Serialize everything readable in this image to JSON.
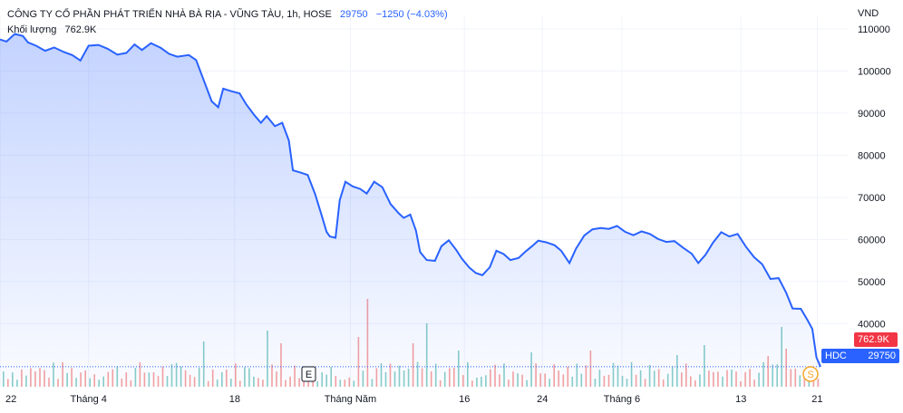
{
  "legend": {
    "company": "CÔNG TY CỔ PHẦN PHÁT TRIỂN NHÀ BÀ RỊA - VŨNG TÀU, 1h, HOSE",
    "last": "29750",
    "change": "−1250 (−4.03%)",
    "volume_label": "Khối lượng",
    "volume_value": "762.9K"
  },
  "currency": "VND",
  "badges": {
    "volume": "762.9K",
    "symbol": "HDC",
    "price": "29750"
  },
  "markers": {
    "earnings": "E",
    "dividend": "S"
  },
  "colors": {
    "line": "#2962ff",
    "up": "#26a69a",
    "down": "#ef5350",
    "badge_down": "#f23645"
  },
  "chart_data": {
    "type": "area",
    "yaxis": {
      "min": 25000,
      "max": 113000,
      "ticks": [
        40000,
        50000,
        60000,
        70000,
        80000,
        90000,
        100000,
        110000
      ],
      "side": "right"
    },
    "xaxis_labels": [
      "22",
      "Tháng 4",
      "18",
      "Tháng Năm",
      "16",
      "24",
      "Tháng 6",
      "13",
      "21"
    ],
    "xaxis_label_positions": [
      0,
      0.108,
      0.286,
      0.427,
      0.566,
      0.661,
      0.758,
      0.903,
      0.996
    ],
    "series": [
      {
        "values": [
          [
            0.0,
            107500
          ],
          [
            0.008,
            107000
          ],
          [
            0.018,
            108800
          ],
          [
            0.028,
            108300
          ],
          [
            0.034,
            106800
          ],
          [
            0.044,
            106000
          ],
          [
            0.055,
            104800
          ],
          [
            0.066,
            105600
          ],
          [
            0.078,
            104500
          ],
          [
            0.088,
            103800
          ],
          [
            0.098,
            102500
          ],
          [
            0.108,
            106000
          ],
          [
            0.12,
            106200
          ],
          [
            0.131,
            105300
          ],
          [
            0.143,
            103900
          ],
          [
            0.154,
            104300
          ],
          [
            0.164,
            106300
          ],
          [
            0.173,
            105000
          ],
          [
            0.184,
            106600
          ],
          [
            0.196,
            105500
          ],
          [
            0.206,
            104100
          ],
          [
            0.216,
            103400
          ],
          [
            0.23,
            103800
          ],
          [
            0.239,
            102600
          ],
          [
            0.248,
            98000
          ],
          [
            0.258,
            92800
          ],
          [
            0.266,
            91400
          ],
          [
            0.272,
            95800
          ],
          [
            0.282,
            95200
          ],
          [
            0.292,
            94700
          ],
          [
            0.3,
            92100
          ],
          [
            0.31,
            89500
          ],
          [
            0.318,
            87700
          ],
          [
            0.325,
            89300
          ],
          [
            0.335,
            86900
          ],
          [
            0.344,
            87700
          ],
          [
            0.352,
            83500
          ],
          [
            0.357,
            76400
          ],
          [
            0.366,
            75900
          ],
          [
            0.375,
            75300
          ],
          [
            0.384,
            70800
          ],
          [
            0.392,
            65700
          ],
          [
            0.398,
            61800
          ],
          [
            0.402,
            60700
          ],
          [
            0.409,
            60400
          ],
          [
            0.414,
            69300
          ],
          [
            0.421,
            73700
          ],
          [
            0.43,
            72600
          ],
          [
            0.439,
            72000
          ],
          [
            0.447,
            70900
          ],
          [
            0.456,
            73700
          ],
          [
            0.466,
            72400
          ],
          [
            0.476,
            68400
          ],
          [
            0.486,
            66200
          ],
          [
            0.492,
            65100
          ],
          [
            0.5,
            65900
          ],
          [
            0.507,
            62100
          ],
          [
            0.512,
            57000
          ],
          [
            0.52,
            55100
          ],
          [
            0.53,
            54900
          ],
          [
            0.538,
            58400
          ],
          [
            0.547,
            59800
          ],
          [
            0.556,
            57500
          ],
          [
            0.563,
            55400
          ],
          [
            0.572,
            53300
          ],
          [
            0.58,
            52000
          ],
          [
            0.588,
            51500
          ],
          [
            0.597,
            53400
          ],
          [
            0.605,
            57300
          ],
          [
            0.614,
            56500
          ],
          [
            0.622,
            55100
          ],
          [
            0.632,
            55600
          ],
          [
            0.641,
            57200
          ],
          [
            0.648,
            58300
          ],
          [
            0.656,
            59700
          ],
          [
            0.666,
            59300
          ],
          [
            0.676,
            58600
          ],
          [
            0.684,
            57300
          ],
          [
            0.694,
            54400
          ],
          [
            0.702,
            57800
          ],
          [
            0.712,
            60900
          ],
          [
            0.722,
            62400
          ],
          [
            0.732,
            62700
          ],
          [
            0.742,
            62500
          ],
          [
            0.752,
            63200
          ],
          [
            0.762,
            61800
          ],
          [
            0.772,
            61000
          ],
          [
            0.782,
            61900
          ],
          [
            0.792,
            61300
          ],
          [
            0.802,
            60100
          ],
          [
            0.812,
            59400
          ],
          [
            0.822,
            59600
          ],
          [
            0.832,
            58100
          ],
          [
            0.843,
            56600
          ],
          [
            0.851,
            54400
          ],
          [
            0.86,
            56400
          ],
          [
            0.869,
            59200
          ],
          [
            0.879,
            61700
          ],
          [
            0.889,
            60700
          ],
          [
            0.899,
            61300
          ],
          [
            0.909,
            58300
          ],
          [
            0.919,
            55800
          ],
          [
            0.929,
            54100
          ],
          [
            0.939,
            50600
          ],
          [
            0.949,
            50800
          ],
          [
            0.958,
            47400
          ],
          [
            0.966,
            43600
          ],
          [
            0.976,
            43500
          ],
          [
            0.984,
            40900
          ],
          [
            0.99,
            38700
          ],
          [
            0.995,
            32000
          ],
          [
            1.0,
            29750
          ]
        ]
      }
    ]
  }
}
